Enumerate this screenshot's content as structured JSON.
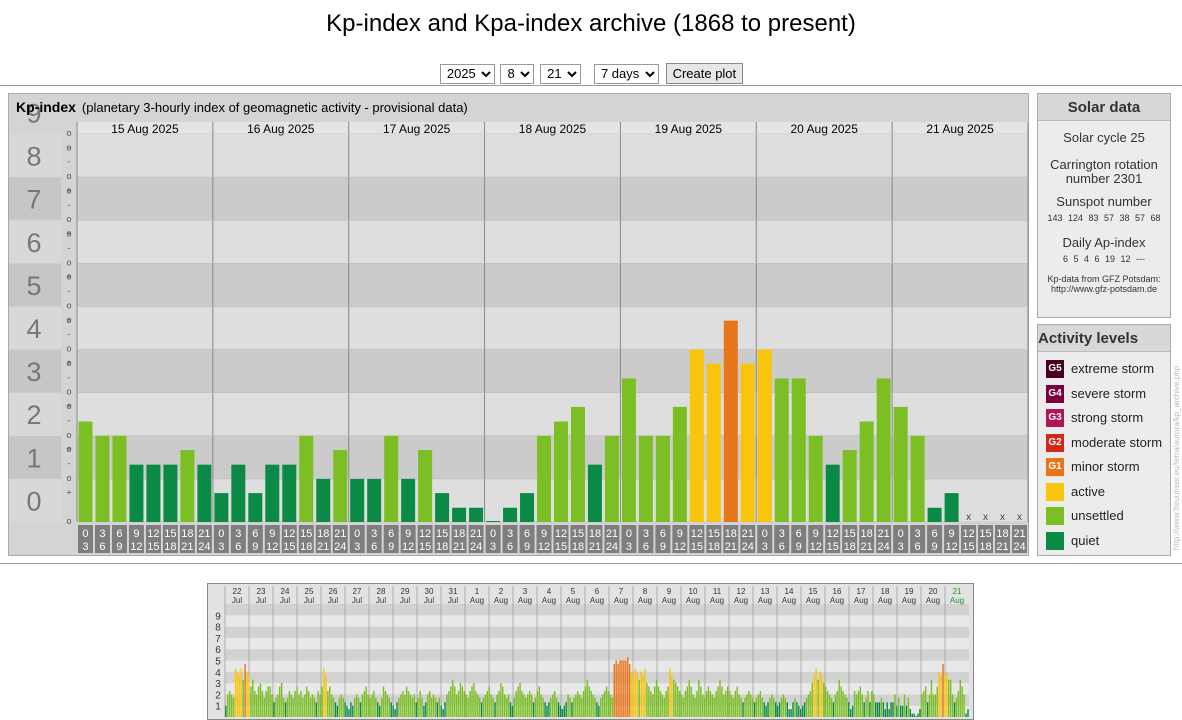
{
  "title": "Kp-index and Kpa-index archive (1868 to present)",
  "controls": {
    "year": "2025",
    "month": "8",
    "day": "21",
    "span": "7 days",
    "button": "Create plot"
  },
  "kp_panel": {
    "title": "Kp-index",
    "subtitle": "(planetary 3-hourly index of geomagnetic activity - provisional data)"
  },
  "solar": {
    "header": "Solar data",
    "cycle": "Solar cycle 25",
    "carrington_1": "Carrington rotation",
    "carrington_2": "number 2301",
    "sunspot_label": "Sunspot number",
    "sunspot_values": "143 124 83 57 38 57 68",
    "ap_label": "Daily Ap-index",
    "ap_values": "6 5 4 6 19 12 ---",
    "source_1": "Kp-data from GFZ Potsdam:",
    "source_2": "http://www.gfz-potsdam.de"
  },
  "activity": {
    "header": "Activity levels",
    "levels": [
      {
        "code": "G5",
        "label": "extreme storm",
        "color": "#4a0022"
      },
      {
        "code": "G4",
        "label": "severe storm",
        "color": "#7a0040"
      },
      {
        "code": "G3",
        "label": "strong storm",
        "color": "#b0155a"
      },
      {
        "code": "G2",
        "label": "moderate storm",
        "color": "#d2281c"
      },
      {
        "code": "G1",
        "label": "minor storm",
        "color": "#e8751a"
      },
      {
        "code": "",
        "label": "active",
        "color": "#f9c40c"
      },
      {
        "code": "",
        "label": "unsettled",
        "color": "#7bbf24"
      },
      {
        "code": "",
        "label": "quiet",
        "color": "#0b8a45"
      }
    ]
  },
  "credit": "http://www.freuunser.eu/terra/aurora/kp_archive.php",
  "chart_data": {
    "type": "bar",
    "days": [
      "15 Aug 2025",
      "16 Aug 2025",
      "17 Aug 2025",
      "18 Aug 2025",
      "19 Aug 2025",
      "20 Aug 2025",
      "21 Aug 2025"
    ],
    "y_ticks": [
      "0",
      "1",
      "2",
      "3",
      "4",
      "5",
      "6",
      "7",
      "8",
      "9"
    ],
    "sub_ticks": [
      "o",
      "+",
      "-",
      "o"
    ],
    "hour_top": [
      "0",
      "3",
      "6",
      "9",
      "12",
      "15",
      "18",
      "21"
    ],
    "hour_bottom": [
      "3",
      "6",
      "9",
      "12",
      "15",
      "18",
      "21",
      "24"
    ],
    "missing_mark": "x",
    "ylim": [
      0,
      9
    ],
    "kp_values": [
      2.33,
      2,
      2,
      1.33,
      1.33,
      1.33,
      1.67,
      1.33,
      0.67,
      1.33,
      0.67,
      1.33,
      1.33,
      2,
      1,
      1.67,
      1,
      1,
      2,
      1,
      1.67,
      0.67,
      0.33,
      0.33,
      0,
      0.33,
      0.67,
      2,
      2.33,
      2.67,
      1.33,
      2,
      3.33,
      2,
      2,
      2.67,
      4,
      3.67,
      4.67,
      3.67,
      4,
      3.33,
      3.33,
      2,
      1.33,
      1.67,
      2.33,
      3.33,
      2.67,
      2,
      0.33,
      0.67,
      null,
      null,
      null,
      null
    ],
    "mini_labels": [
      [
        "22",
        "Jul"
      ],
      [
        "23",
        "Jul"
      ],
      [
        "24",
        "Jul"
      ],
      [
        "25",
        "Jul"
      ],
      [
        "26",
        "Jul"
      ],
      [
        "27",
        "Jul"
      ],
      [
        "28",
        "Jul"
      ],
      [
        "29",
        "Jul"
      ],
      [
        "30",
        "Jul"
      ],
      [
        "31",
        "Jul"
      ],
      [
        "1",
        "Aug"
      ],
      [
        "2",
        "Aug"
      ],
      [
        "3",
        "Aug"
      ],
      [
        "4",
        "Aug"
      ],
      [
        "5",
        "Aug"
      ],
      [
        "6",
        "Aug"
      ],
      [
        "7",
        "Aug"
      ],
      [
        "8",
        "Aug"
      ],
      [
        "9",
        "Aug"
      ],
      [
        "10",
        "Aug"
      ],
      [
        "11",
        "Aug"
      ],
      [
        "12",
        "Aug"
      ],
      [
        "13",
        "Aug"
      ],
      [
        "14",
        "Aug"
      ],
      [
        "15",
        "Aug"
      ],
      [
        "16",
        "Aug"
      ],
      [
        "17",
        "Aug"
      ],
      [
        "18",
        "Aug"
      ],
      [
        "19",
        "Aug"
      ],
      [
        "20",
        "Aug"
      ],
      [
        "21",
        "Aug"
      ]
    ],
    "mini_y_ticks": [
      "1",
      "2",
      "3",
      "4",
      "5",
      "6",
      "7",
      "8",
      "9"
    ],
    "mini_values": [
      1,
      2,
      2.3,
      2,
      1.7,
      4.3,
      4,
      3.7,
      4.3,
      3.3,
      4.7,
      4,
      3.7,
      2.7,
      3.3,
      2.3,
      2,
      2.7,
      3,
      2.3,
      1.7,
      2.3,
      2.7,
      2.7,
      2,
      1.3,
      1.7,
      2,
      2.7,
      3,
      1.7,
      1.3,
      1.7,
      2.3,
      2,
      1.7,
      2.3,
      2.7,
      2,
      2.3,
      1.7,
      2,
      2.7,
      2.3,
      1.7,
      2,
      1.7,
      1.3,
      2.3,
      2,
      2.7,
      4.3,
      3.7,
      2.3,
      2.7,
      2,
      1.7,
      1.3,
      1,
      1.7,
      2,
      1.7,
      1.3,
      1,
      0.7,
      1.3,
      1,
      1.7,
      2,
      1.7,
      1.3,
      2,
      2.3,
      2.7,
      2,
      1.7,
      2,
      2.3,
      1.7,
      1.3,
      1,
      1.7,
      2.7,
      2.3,
      2,
      1.7,
      1.3,
      1,
      0.7,
      1.3,
      1.7,
      2,
      2.3,
      2,
      2.7,
      2.3,
      2,
      1.7,
      2,
      1.3,
      1.7,
      2.3,
      1.7,
      1,
      1.3,
      2,
      2.3,
      1.7,
      2,
      1.7,
      1.3,
      1.7,
      1,
      0.7,
      1.3,
      2,
      2.3,
      2.7,
      3.3,
      2.7,
      2,
      2.3,
      3,
      2.7,
      2.3,
      2,
      1.7,
      2.3,
      2.7,
      3,
      2.3,
      2,
      1.7,
      1.3,
      1.7,
      2,
      2.3,
      2.7,
      2,
      1.7,
      1.3,
      2,
      2.3,
      3,
      2.7,
      2,
      1.7,
      2,
      1.3,
      1,
      1.7,
      2.3,
      2.7,
      3,
      2.3,
      2,
      1.7,
      2,
      2.3,
      2,
      1.3,
      1.7,
      2.3,
      2.7,
      2,
      1.7,
      1.3,
      1,
      1.3,
      1.7,
      2,
      2.3,
      1.7,
      1.3,
      1,
      0.7,
      1,
      1.3,
      2,
      1.7,
      1.3,
      1.7,
      2,
      2.3,
      2,
      1.7,
      2.3,
      2.7,
      3.3,
      2.7,
      2.3,
      2,
      1.7,
      1.3,
      1,
      1.7,
      2,
      2.3,
      2.7,
      2.3,
      2,
      1.7,
      4.7,
      5,
      4.7,
      5,
      5,
      5,
      5,
      5.3,
      4.7,
      4,
      3.7,
      4.3,
      4,
      3.3,
      4,
      3.7,
      4.3,
      3,
      2.7,
      2.3,
      2,
      2.7,
      3.3,
      2.7,
      2.3,
      2,
      1.7,
      2.3,
      2.7,
      4.3,
      3.7,
      3.3,
      3,
      2.7,
      2.3,
      2,
      1.7,
      2.3,
      2.7,
      3.3,
      2.7,
      2,
      1.7,
      2.3,
      3.3,
      2.7,
      2,
      1.7,
      2.3,
      2.7,
      2.3,
      2,
      1.7,
      2.3,
      2.7,
      3.3,
      2.7,
      2,
      2.3,
      2.7,
      2.3,
      2,
      1.7,
      2.3,
      2.7,
      2,
      1.7,
      1.3,
      1.7,
      2,
      2.3,
      2,
      1.7,
      1.3,
      1.7,
      2,
      2.3,
      1.7,
      1.3,
      1,
      1.3,
      1.7,
      2,
      1.7,
      1.3,
      1,
      1.3,
      1.7,
      2,
      1.7,
      1.3,
      0.7,
      0.7,
      1.3,
      1.7,
      1.3,
      1,
      0.7,
      1,
      1.3,
      1.7,
      2,
      2.3,
      3,
      3.7,
      4.3,
      3.3,
      4,
      3.7,
      3,
      2.7,
      2.3,
      2,
      1.7,
      1.3,
      2,
      2.3,
      3.3,
      2.7,
      2.3,
      2,
      1.7,
      1.3,
      0.7,
      1,
      2.3,
      2,
      2.3,
      2.7,
      2,
      1.3,
      1.7,
      2.3,
      1.3,
      2.3,
      2,
      1.3,
      1.3,
      1.3,
      1.7,
      1.3,
      0.7,
      1.3,
      0.7,
      1.3,
      1.3,
      2,
      1,
      1.7,
      1,
      1,
      2,
      1,
      1.7,
      0.7,
      0.3,
      0.3,
      0,
      0.3,
      0.7,
      2,
      2.3,
      2.7,
      1.3,
      2,
      3.3,
      2,
      2,
      2.7,
      4,
      3.7,
      4.7,
      3.7,
      4,
      3.3,
      3.3,
      2,
      1.3,
      1.7,
      2.3,
      3.3,
      2.7,
      2,
      0.3,
      0.7
    ]
  }
}
